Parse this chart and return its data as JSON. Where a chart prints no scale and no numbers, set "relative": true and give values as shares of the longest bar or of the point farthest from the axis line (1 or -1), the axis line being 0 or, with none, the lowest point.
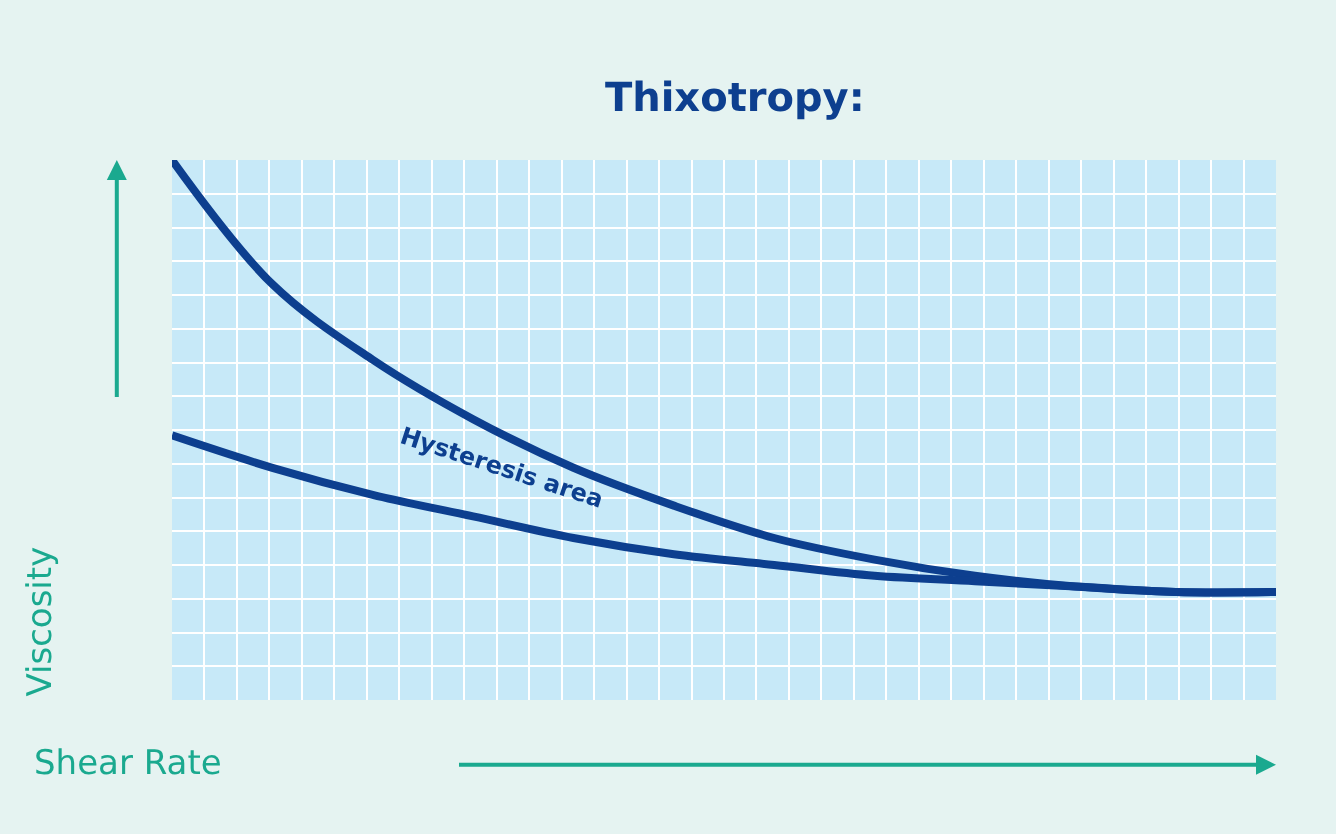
{
  "chart_data": {
    "type": "line",
    "title": "Thixotropy:",
    "xlabel": "Shear Rate",
    "ylabel": "Viscosity",
    "relative": true,
    "grid": true,
    "marker": "none",
    "line_style": "solid",
    "categories": [
      null,
      null,
      null,
      null,
      null,
      null,
      null,
      null,
      null,
      null,
      null,
      null
    ],
    "series": [
      {
        "color": "#0d3f8f",
        "values": [
          1.0,
          0.77,
          0.63,
          0.52,
          0.43,
          0.36,
          0.3,
          0.26,
          0.23,
          0.21,
          0.2,
          0.2
        ]
      },
      {
        "color": "#0d3f8f",
        "values": [
          0.49,
          0.43,
          0.38,
          0.34,
          0.3,
          0.27,
          0.25,
          0.23,
          0.22,
          0.21,
          0.2,
          0.2
        ]
      }
    ],
    "annotations": [
      "Hysteresis area"
    ]
  }
}
